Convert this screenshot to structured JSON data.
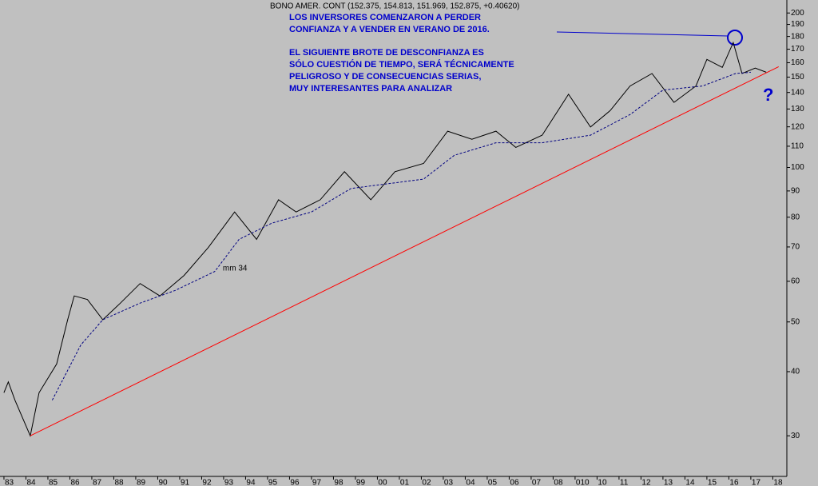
{
  "chart_data": {
    "type": "line",
    "title": "BONO AMER. CONT (152.375, 154.813, 151.969, 152.875, +0.40620)",
    "annotations": [
      "LOS INVERSORES COMENZARON A PERDER",
      "CONFIANZA Y A VENDER EN VERANO DE 2016.",
      "EL SIGUIENTE BROTE DE DESCONFIANZA ES",
      "SÓLO CUESTIÓN DE TIEMPO, SERÁ TÉCNICAMENTE",
      "PELIGROSO Y DE CONSECUENCIAS SERIAS,",
      "MUY INTERESANTES PARA ANALIZAR",
      "?"
    ],
    "log_scale": true,
    "xlim": [
      1982.82,
      2018.64
    ],
    "ylim": [
      25,
      212
    ],
    "yticks": [
      30,
      40,
      50,
      60,
      70,
      80,
      90,
      100,
      110,
      120,
      130,
      140,
      150,
      160,
      170,
      180,
      190,
      200
    ],
    "xticks": [
      {
        "value": 1983,
        "label": "83"
      },
      {
        "value": 1984,
        "label": "84"
      },
      {
        "value": 1985,
        "label": "85"
      },
      {
        "value": 1986,
        "label": "86"
      },
      {
        "value": 1987,
        "label": "87"
      },
      {
        "value": 1988,
        "label": "88"
      },
      {
        "value": 1989,
        "label": "89"
      },
      {
        "value": 1990,
        "label": "90"
      },
      {
        "value": 1991,
        "label": "91"
      },
      {
        "value": 1992,
        "label": "92"
      },
      {
        "value": 1993,
        "label": "93"
      },
      {
        "value": 1994,
        "label": "94"
      },
      {
        "value": 1995,
        "label": "95"
      },
      {
        "value": 1996,
        "label": "96"
      },
      {
        "value": 1997,
        "label": "97"
      },
      {
        "value": 1998,
        "label": "98"
      },
      {
        "value": 1999,
        "label": "99"
      },
      {
        "value": 2000,
        "label": "00"
      },
      {
        "value": 2001,
        "label": "01"
      },
      {
        "value": 2002,
        "label": "02"
      },
      {
        "value": 2003,
        "label": "03"
      },
      {
        "value": 2004,
        "label": "04"
      },
      {
        "value": 2005,
        "label": "05"
      },
      {
        "value": 2006,
        "label": "06"
      },
      {
        "value": 2007,
        "label": "07"
      },
      {
        "value": 2008,
        "label": "08"
      },
      {
        "value": 2009,
        "label": "010"
      },
      {
        "value": 2010,
        "label": "10"
      },
      {
        "value": 2011,
        "label": "11"
      },
      {
        "value": 2012,
        "label": "12"
      },
      {
        "value": 2013,
        "label": "13"
      },
      {
        "value": 2014,
        "label": "14"
      },
      {
        "value": 2015,
        "label": "15"
      },
      {
        "value": 2016,
        "label": "16"
      },
      {
        "value": 2017,
        "label": "17"
      },
      {
        "value": 2018,
        "label": "18"
      }
    ],
    "series": [
      {
        "color": "#000000",
        "x": [
          1983.0,
          1983.2,
          1983.5,
          1984.2,
          1984.6,
          1985.4,
          1985.9,
          1986.2,
          1986.8,
          1987.5,
          1988.3,
          1989.2,
          1990.1,
          1991.2,
          1992.3,
          1993.5,
          1994.5,
          1995.5,
          1996.3,
          1997.4,
          1998.5,
          1999.7,
          2000.8,
          2002.1,
          2003.2,
          2004.3,
          2005.4,
          2006.3,
          2007.5,
          2008.7,
          2009.7,
          2010.6,
          2011.5,
          2012.5,
          2013.5,
          2014.5,
          2015.0,
          2015.7,
          2016.2,
          2016.6,
          2017.2,
          2017.7
        ],
        "values": [
          36.4,
          38.2,
          35.2,
          30,
          36.4,
          41.4,
          50.5,
          56.2,
          55.3,
          50.5,
          54.4,
          59.4,
          56.2,
          61.6,
          69.8,
          81.9,
          72.4,
          86.5,
          81.9,
          86.5,
          98.1,
          86.5,
          98.1,
          101.8,
          117.7,
          113.5,
          117.7,
          109.4,
          115.6,
          138.9,
          119.9,
          129.1,
          144.1,
          152.4,
          133.9,
          144.1,
          162.4,
          156.7,
          175.2,
          152.4,
          156.2,
          153.3
        ]
      },
      {
        "name": "mm 34",
        "color": "#000080",
        "dash": true,
        "x": [
          1985.2,
          1986.5,
          1987.5,
          1989.2,
          1990.8,
          1992.6,
          1993.7,
          1995.2,
          1997.0,
          1998.8,
          2000.6,
          2002.1,
          2003.5,
          2005.4,
          2007.5,
          2009.7,
          2011.5,
          2013.0,
          2014.8,
          2016.3,
          2017.0
        ],
        "values": [
          35.2,
          45.1,
          50.5,
          54.4,
          57.6,
          62.7,
          72.4,
          77.9,
          81.9,
          91.0,
          93.1,
          94.9,
          105.6,
          111.7,
          111.7,
          115.6,
          126.8,
          141.5,
          144.1,
          152.4,
          153.3
        ]
      },
      {
        "color": "#ff0000",
        "x": [
          1984.2,
          2018.27
        ],
        "values": [
          30,
          157.2
        ]
      }
    ]
  }
}
